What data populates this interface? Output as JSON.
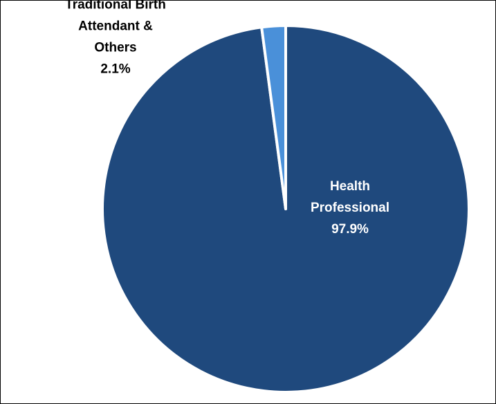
{
  "chart_data": {
    "type": "pie",
    "title": "",
    "slices": [
      {
        "label_lines": [
          "Health",
          "Professional"
        ],
        "value_label": "97.9%",
        "value": 97.9,
        "color": "#1f497d"
      },
      {
        "label_lines": [
          "Traditional Birth",
          "Attendant &",
          "Others"
        ],
        "value_label": "2.1%",
        "value": 2.1,
        "color": "#4a90d9"
      }
    ],
    "start_angle_deg": 0,
    "direction": "clockwise",
    "label_colors": {
      "inside": "#ffffff",
      "outside": "#000000"
    },
    "slice_border_color": "#ffffff",
    "legend": "none"
  }
}
